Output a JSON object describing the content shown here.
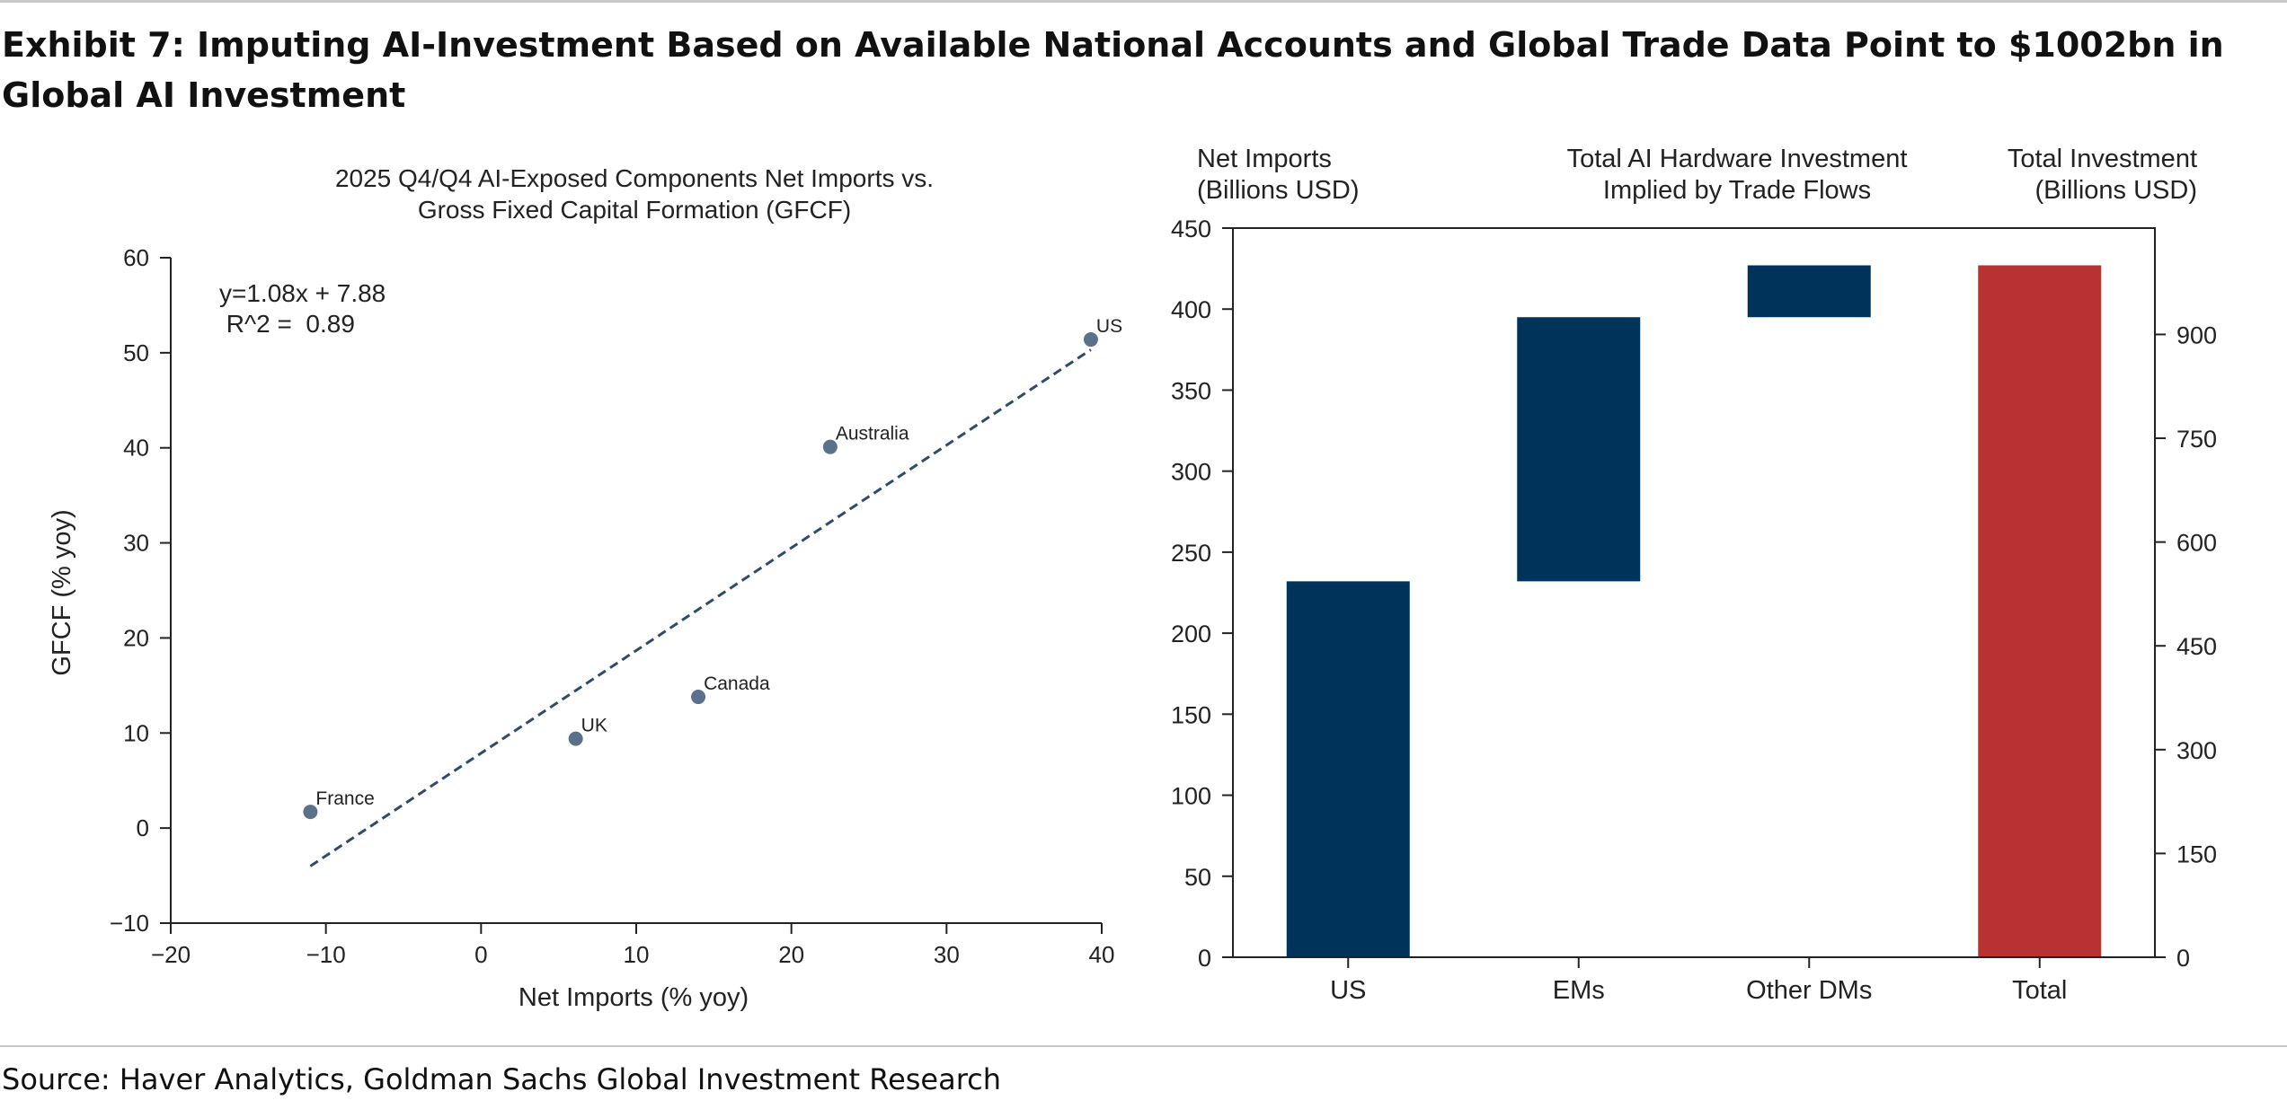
{
  "exhibit": {
    "title": "Exhibit 7: Imputing AI-Investment Based on Available National Accounts and Global Trade Data Point to $1002bn in Global AI Investment",
    "source": "Source: Haver Analytics, Goldman Sachs Global Investment Research"
  },
  "chart_data": [
    {
      "type": "scatter",
      "title": "2025 Q4/Q4 AI-Exposed Components Net Imports vs. Gross Fixed Capital Formation (GFCF)",
      "title_lines": [
        "2025 Q4/Q4 AI-Exposed Components Net Imports vs.",
        "Gross Fixed Capital Formation (GFCF)"
      ],
      "xlabel": "Net Imports (% yoy)",
      "ylabel": "GFCF (% yoy)",
      "xlim": [
        -20,
        40
      ],
      "ylim": [
        -10,
        60
      ],
      "xticks": [
        "−20",
        "−10",
        "0",
        "10",
        "20",
        "30",
        "40"
      ],
      "yticks": [
        "−10",
        "0",
        "10",
        "20",
        "30",
        "40",
        "50",
        "60"
      ],
      "points": [
        {
          "label": "France",
          "x": -11,
          "y": 1.7
        },
        {
          "label": "UK",
          "x": 6.1,
          "y": 9.4
        },
        {
          "label": "Canada",
          "x": 14,
          "y": 13.8
        },
        {
          "label": "Australia",
          "x": 22.5,
          "y": 40.1
        },
        {
          "label": "US",
          "x": 39.3,
          "y": 51.4
        }
      ],
      "trendline": {
        "slope": 1.08,
        "intercept": 7.88,
        "x_range": [
          -11,
          39.3
        ],
        "style": "dashed"
      },
      "annotations": [
        "y=1.08x + 7.88",
        " R^2 =  0.89"
      ],
      "colors": {
        "points": "#5b7189",
        "trendline": "#2f4b6b"
      }
    },
    {
      "type": "bar",
      "subtype": "waterfall",
      "categories": [
        "US",
        "EMs",
        "Other DMs",
        "Total"
      ],
      "bars": [
        {
          "category": "US",
          "start": 0,
          "end": 232
        },
        {
          "category": "EMs",
          "start": 232,
          "end": 395
        },
        {
          "category": "Other DMs",
          "start": 395,
          "end": 427
        },
        {
          "category": "Total",
          "start": 0,
          "end": 427
        }
      ],
      "title": "Total AI Hardware Investment Implied by Trade Flows",
      "title_lines": [
        "Total AI Hardware Investment",
        "Implied by Trade Flows"
      ],
      "left_axis_label_lines": [
        "Net Imports",
        "(Billions USD)"
      ],
      "right_axis_label_lines": [
        "Total Investment",
        "(Billions USD)"
      ],
      "ylim_left": [
        0,
        450
      ],
      "yticks_left": [
        "0",
        "50",
        "100",
        "150",
        "200",
        "250",
        "300",
        "350",
        "400",
        "450"
      ],
      "ylim_right": [
        0,
        1053.7
      ],
      "yticks_right": [
        0,
        150,
        300,
        450,
        600,
        750,
        900
      ],
      "colors": {
        "components": "#003359",
        "total": "#b83232"
      }
    }
  ]
}
